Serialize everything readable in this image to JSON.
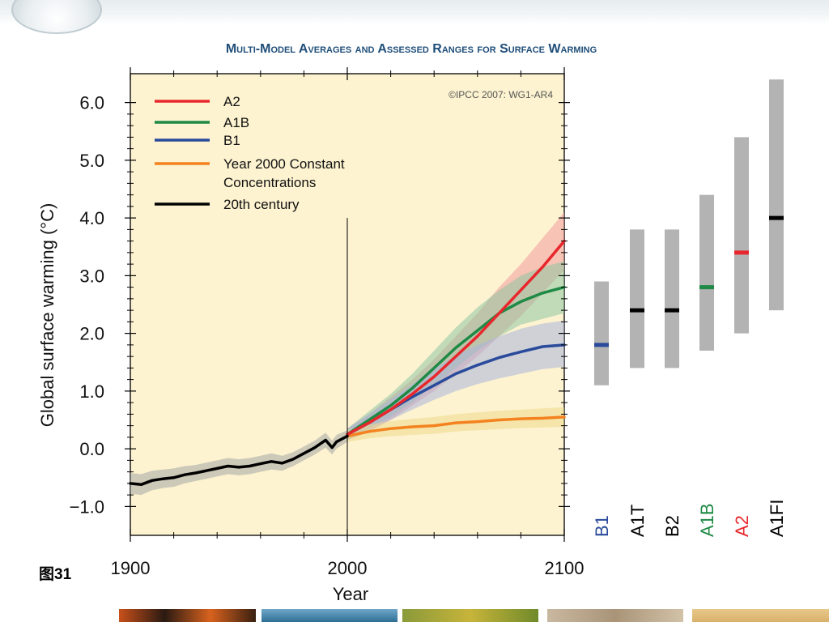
{
  "fig_caption": "图31",
  "chart_data": {
    "type": "line",
    "title": "Multi-Model Averages and Assessed Ranges for Surface Warming",
    "copyright": "©IPCC 2007: WG1-AR4",
    "xlabel": "Year",
    "ylabel": "Global surface warming (°C)",
    "xlim": [
      1900,
      2100
    ],
    "ylim": [
      -1.5,
      6.5
    ],
    "x_ticks": [
      1900,
      2000,
      2100
    ],
    "y_ticks": [
      -1.0,
      0.0,
      1.0,
      2.0,
      3.0,
      4.0,
      5.0,
      6.0
    ],
    "y_tick_labels": [
      "−1.0",
      "0.0",
      "1.0",
      "2.0",
      "3.0",
      "4.0",
      "5.0",
      "6.0"
    ],
    "legend_position": "top-left",
    "series": [
      {
        "name": "A2",
        "color": "#e8272c",
        "band_color": "#f29a9c",
        "x": [
          2000,
          2010,
          2020,
          2030,
          2040,
          2050,
          2060,
          2070,
          2080,
          2090,
          2100
        ],
        "values": [
          0.25,
          0.45,
          0.68,
          0.95,
          1.25,
          1.6,
          1.95,
          2.35,
          2.75,
          3.15,
          3.6
        ],
        "band_low": [
          0.15,
          0.3,
          0.5,
          0.75,
          1.0,
          1.3,
          1.6,
          1.95,
          2.3,
          2.7,
          3.1
        ],
        "band_high": [
          0.35,
          0.6,
          0.9,
          1.2,
          1.55,
          1.95,
          2.35,
          2.8,
          3.2,
          3.65,
          4.1
        ]
      },
      {
        "name": "A1B",
        "color": "#1e8a45",
        "band_color": "#8fc4a3",
        "x": [
          2000,
          2010,
          2020,
          2030,
          2040,
          2050,
          2060,
          2070,
          2080,
          2090,
          2100
        ],
        "values": [
          0.25,
          0.5,
          0.75,
          1.05,
          1.4,
          1.75,
          2.05,
          2.35,
          2.55,
          2.7,
          2.8
        ],
        "band_low": [
          0.15,
          0.35,
          0.55,
          0.8,
          1.1,
          1.4,
          1.7,
          1.95,
          2.15,
          2.25,
          2.35
        ],
        "band_high": [
          0.35,
          0.65,
          0.95,
          1.3,
          1.7,
          2.1,
          2.45,
          2.75,
          3.0,
          3.15,
          3.25
        ]
      },
      {
        "name": "B1",
        "color": "#2a4b9b",
        "band_color": "#a9b4dc",
        "x": [
          2000,
          2010,
          2020,
          2030,
          2040,
          2050,
          2060,
          2070,
          2080,
          2090,
          2100
        ],
        "values": [
          0.25,
          0.45,
          0.68,
          0.9,
          1.1,
          1.3,
          1.45,
          1.58,
          1.68,
          1.77,
          1.8
        ],
        "band_low": [
          0.15,
          0.3,
          0.5,
          0.68,
          0.85,
          1.0,
          1.12,
          1.22,
          1.3,
          1.38,
          1.42
        ],
        "band_high": [
          0.35,
          0.6,
          0.86,
          1.12,
          1.38,
          1.62,
          1.8,
          1.95,
          2.08,
          2.17,
          2.22
        ]
      },
      {
        "name": "Year 2000 Constant Concentrations",
        "color": "#f4821f",
        "band_color": "#efd98a",
        "x": [
          2000,
          2010,
          2020,
          2030,
          2040,
          2050,
          2060,
          2070,
          2080,
          2090,
          2100
        ],
        "values": [
          0.22,
          0.3,
          0.35,
          0.38,
          0.4,
          0.45,
          0.47,
          0.5,
          0.52,
          0.53,
          0.55
        ],
        "band_low": [
          0.12,
          0.18,
          0.22,
          0.24,
          0.26,
          0.3,
          0.32,
          0.34,
          0.36,
          0.37,
          0.38
        ],
        "band_high": [
          0.32,
          0.42,
          0.48,
          0.52,
          0.55,
          0.6,
          0.63,
          0.66,
          0.68,
          0.7,
          0.72
        ]
      },
      {
        "name": "20th century",
        "color": "#000000",
        "band_color": "#a6a6a6",
        "x": [
          1900,
          1905,
          1910,
          1915,
          1920,
          1925,
          1930,
          1935,
          1940,
          1945,
          1950,
          1955,
          1960,
          1965,
          1970,
          1975,
          1980,
          1985,
          1990,
          1993,
          1995,
          2000
        ],
        "values": [
          -0.6,
          -0.62,
          -0.55,
          -0.52,
          -0.5,
          -0.45,
          -0.42,
          -0.38,
          -0.34,
          -0.3,
          -0.32,
          -0.3,
          -0.26,
          -0.22,
          -0.25,
          -0.18,
          -0.08,
          0.02,
          0.15,
          0.02,
          0.12,
          0.22
        ],
        "band_low": [
          -0.78,
          -0.8,
          -0.72,
          -0.68,
          -0.66,
          -0.6,
          -0.56,
          -0.52,
          -0.48,
          -0.44,
          -0.46,
          -0.44,
          -0.4,
          -0.36,
          -0.38,
          -0.3,
          -0.2,
          -0.1,
          0.02,
          -0.1,
          0.0,
          0.12
        ],
        "band_high": [
          -0.42,
          -0.44,
          -0.38,
          -0.36,
          -0.34,
          -0.3,
          -0.28,
          -0.24,
          -0.2,
          -0.16,
          -0.18,
          -0.16,
          -0.12,
          -0.08,
          -0.12,
          -0.06,
          0.04,
          0.14,
          0.28,
          0.14,
          0.24,
          0.32
        ]
      }
    ],
    "ranges": [
      {
        "name": "B1",
        "low": 1.1,
        "high": 2.9,
        "best": 1.8,
        "color": "#2a4b9b"
      },
      {
        "name": "A1T",
        "low": 1.4,
        "high": 3.8,
        "best": 2.4,
        "color": "#000000"
      },
      {
        "name": "B2",
        "low": 1.4,
        "high": 3.8,
        "best": 2.4,
        "color": "#000000"
      },
      {
        "name": "A1B",
        "low": 1.7,
        "high": 4.4,
        "best": 2.8,
        "color": "#1e8a45"
      },
      {
        "name": "A2",
        "low": 2.0,
        "high": 5.4,
        "best": 3.4,
        "color": "#e8272c"
      },
      {
        "name": "A1FI",
        "low": 2.4,
        "high": 6.4,
        "best": 4.0,
        "color": "#000000"
      }
    ],
    "year_2000_marker": {
      "x": 2000,
      "y_top": 4.0
    },
    "colors": {
      "panel_bg": "#fdf3d0",
      "range_bar": "#b3b3b3",
      "title": "#1f4e79"
    }
  }
}
